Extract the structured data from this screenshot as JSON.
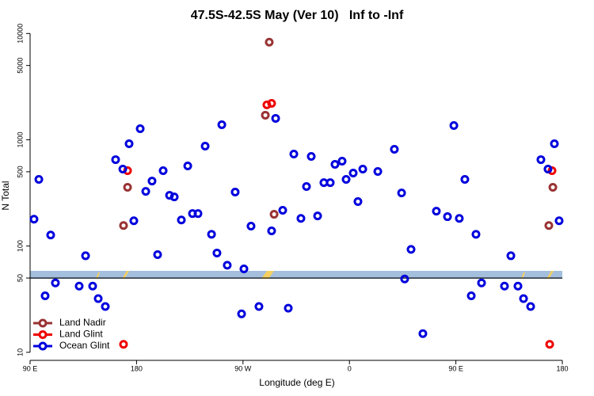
{
  "chart_data": {
    "type": "scatter",
    "title": "47.5S-42.5S May (Ver 10)   Inf to -Inf",
    "xlabel": "Longitude (deg E)",
    "ylabel": "N Total",
    "log_y": true,
    "legend": "bottom-left",
    "hline": 50,
    "xlim": [
      90,
      540
    ],
    "ylim": [
      8.4,
      10400
    ],
    "xticks": [
      {
        "value": 90,
        "label": "90 E"
      },
      180,
      {
        "value": 270,
        "label": "90 W"
      },
      {
        "value": 360,
        "label": "0"
      },
      {
        "value": 450,
        "label": "90 E"
      },
      {
        "value": 540,
        "label": "180"
      }
    ],
    "yticks": [
      10,
      50,
      100,
      500,
      1000,
      5000,
      10000
    ],
    "series": [
      {
        "name": "Land Nadir",
        "color": "#993333",
        "x": [
          169.0,
          172.4,
          288.9,
          292.2,
          296.3,
          528.6,
          532.0
        ],
        "values": [
          156,
          357,
          1703,
          8280,
          199,
          156,
          357
        ]
      },
      {
        "name": "Land Glint",
        "color": "#ee0000",
        "x": [
          169.0,
          172.4,
          290.2,
          294.2,
          529.3,
          531.3
        ],
        "values": [
          11.9,
          512,
          2130,
          2200,
          11.9,
          512
        ]
      },
      {
        "name": "Ocean Glint",
        "color": "#0000dd",
        "x": [
          93.3,
          97.4,
          102.7,
          107.4,
          111.4,
          131.5,
          136.9,
          142.9,
          147.6,
          153.6,
          162.3,
          168.4,
          173.7,
          177.7,
          183.1,
          187.8,
          193.1,
          197.8,
          202.5,
          207.9,
          211.9,
          217.9,
          223.3,
          227.3,
          232.0,
          238.0,
          243.4,
          248.0,
          252.1,
          256.7,
          263.4,
          268.8,
          270.8,
          276.8,
          283.5,
          294.2,
          297.6,
          303.6,
          308.3,
          313.0,
          319.0,
          323.7,
          327.7,
          333.1,
          338.4,
          343.8,
          347.8,
          353.8,
          357.2,
          363.2,
          367.2,
          371.3,
          384.0,
          398.0,
          404.1,
          406.7,
          412.1,
          422.1,
          433.5,
          442.9,
          448.3,
          452.9,
          457.6,
          463.0,
          467.0,
          471.7,
          491.1,
          496.5,
          502.5,
          507.2,
          513.2,
          521.9,
          527.9,
          533.3,
          537.3
        ],
        "values": [
          179,
          424,
          34,
          127,
          45,
          42,
          81,
          42,
          32,
          27,
          650,
          530,
          918,
          173,
          1270,
          327,
          409,
          83,
          512,
          300,
          290,
          176,
          567,
          202,
          202,
          871,
          129,
          86,
          1386,
          66,
          322,
          23,
          61,
          154,
          27,
          139,
          1590,
          217,
          26,
          734,
          182,
          363,
          697,
          192,
          395,
          395,
          587,
          629,
          424,
          486,
          262,
          530,
          503,
          813,
          316,
          49,
          93,
          15,
          213,
          189,
          1362,
          182,
          424,
          34,
          129,
          45,
          42,
          81,
          42,
          32,
          27,
          650,
          530,
          918,
          173
        ]
      }
    ]
  }
}
